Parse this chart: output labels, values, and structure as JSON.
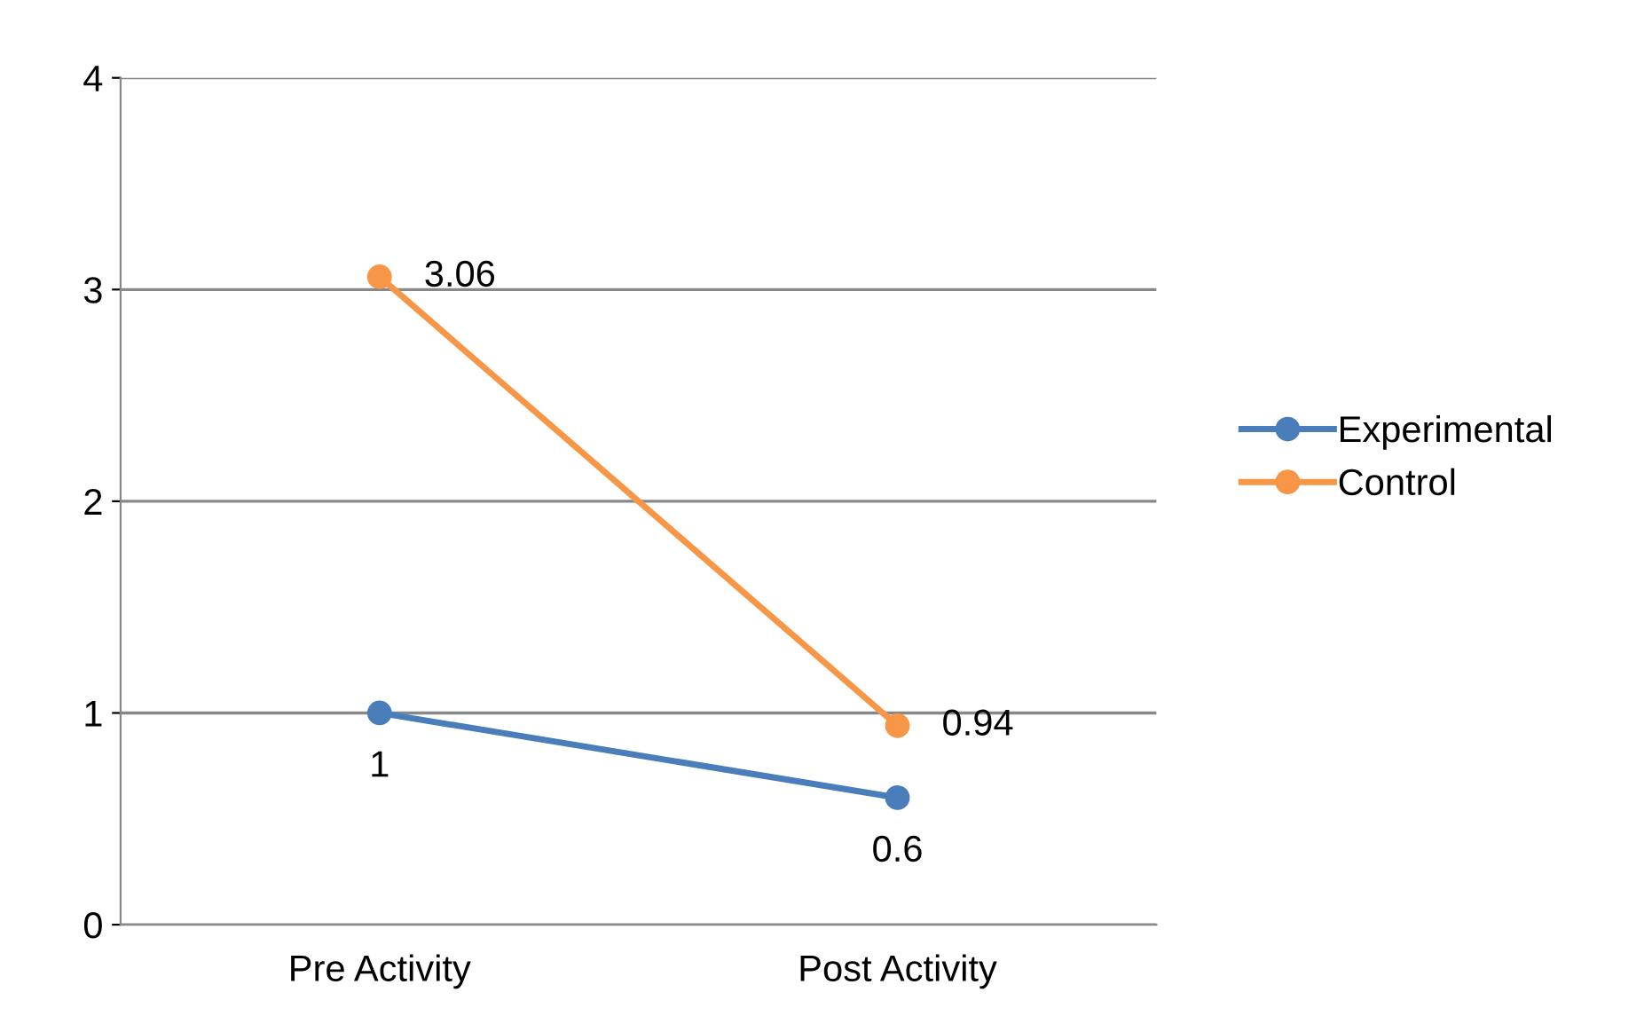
{
  "chart_data": {
    "type": "line",
    "categories": [
      "Pre Activity",
      "Post Activity"
    ],
    "series": [
      {
        "name": "Experimental",
        "color": "#4a7ebb",
        "values": [
          1,
          0.6
        ]
      },
      {
        "name": "Control",
        "color": "#f79646",
        "values": [
          3.06,
          0.94
        ]
      }
    ],
    "ylim": [
      0,
      4
    ],
    "yticks": [
      0,
      1,
      2,
      3,
      4
    ],
    "grid": "y",
    "legend": "right",
    "marker": "circle",
    "line_style": "solid",
    "data_labels": true
  }
}
